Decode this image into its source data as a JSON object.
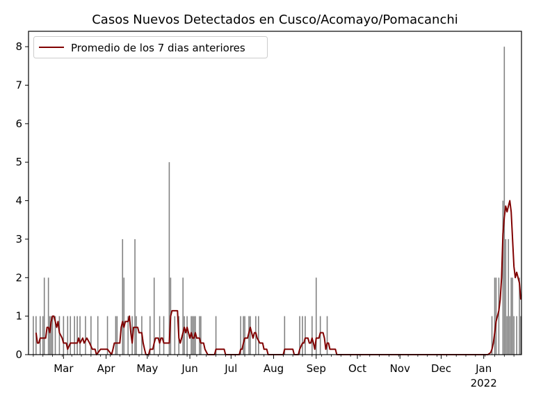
{
  "chart_data": {
    "type": "bar",
    "title": "Casos Nuevos Detectados en Cusco/Acomayo/Pomacanchi",
    "xlabel": "",
    "ylabel": "",
    "x_range": [
      "2021-02-04",
      "2022-01-28"
    ],
    "ylim": [
      0,
      8.4
    ],
    "yticks": [
      0,
      1,
      2,
      3,
      4,
      5,
      6,
      7,
      8
    ],
    "xticks": [
      {
        "date": "2021-03-01",
        "label": "Mar"
      },
      {
        "date": "2021-04-01",
        "label": "Apr"
      },
      {
        "date": "2021-05-01",
        "label": "May"
      },
      {
        "date": "2021-06-01",
        "label": "Jun"
      },
      {
        "date": "2021-07-01",
        "label": "Jul"
      },
      {
        "date": "2021-08-01",
        "label": "Aug"
      },
      {
        "date": "2021-09-01",
        "label": "Sep"
      },
      {
        "date": "2021-10-01",
        "label": "Oct"
      },
      {
        "date": "2021-11-01",
        "label": "Nov"
      },
      {
        "date": "2021-12-01",
        "label": "Dec"
      },
      {
        "date": "2022-01-01",
        "label": "Jan\n2022"
      }
    ],
    "series": [
      {
        "type": "bar",
        "color": "#808080",
        "data": [
          [
            "2021-02-07",
            1
          ],
          [
            "2021-02-09",
            1
          ],
          [
            "2021-02-12",
            1
          ],
          [
            "2021-02-14",
            1
          ],
          [
            "2021-02-15",
            2
          ],
          [
            "2021-02-18",
            2
          ],
          [
            "2021-02-19",
            1
          ],
          [
            "2021-02-20",
            1
          ],
          [
            "2021-02-21",
            1
          ],
          [
            "2021-02-23",
            1
          ],
          [
            "2021-02-26",
            1
          ],
          [
            "2021-03-01",
            1
          ],
          [
            "2021-03-04",
            1
          ],
          [
            "2021-03-06",
            1
          ],
          [
            "2021-03-09",
            1
          ],
          [
            "2021-03-11",
            1
          ],
          [
            "2021-03-13",
            1
          ],
          [
            "2021-03-17",
            1
          ],
          [
            "2021-03-21",
            1
          ],
          [
            "2021-03-26",
            1
          ],
          [
            "2021-04-02",
            1
          ],
          [
            "2021-04-08",
            1
          ],
          [
            "2021-04-09",
            1
          ],
          [
            "2021-04-13",
            3
          ],
          [
            "2021-04-14",
            2
          ],
          [
            "2021-04-17",
            1
          ],
          [
            "2021-04-20",
            1
          ],
          [
            "2021-04-22",
            3
          ],
          [
            "2021-04-23",
            1
          ],
          [
            "2021-04-27",
            1
          ],
          [
            "2021-05-03",
            1
          ],
          [
            "2021-05-06",
            2
          ],
          [
            "2021-05-10",
            1
          ],
          [
            "2021-05-13",
            1
          ],
          [
            "2021-05-17",
            5
          ],
          [
            "2021-05-18",
            2
          ],
          [
            "2021-05-21",
            1
          ],
          [
            "2021-05-24",
            1
          ],
          [
            "2021-05-27",
            2
          ],
          [
            "2021-05-28",
            1
          ],
          [
            "2021-05-30",
            1
          ],
          [
            "2021-06-02",
            1
          ],
          [
            "2021-06-03",
            1
          ],
          [
            "2021-06-04",
            1
          ],
          [
            "2021-06-05",
            1
          ],
          [
            "2021-06-08",
            1
          ],
          [
            "2021-06-09",
            1
          ],
          [
            "2021-06-20",
            1
          ],
          [
            "2021-07-08",
            1
          ],
          [
            "2021-07-10",
            1
          ],
          [
            "2021-07-11",
            1
          ],
          [
            "2021-07-14",
            1
          ],
          [
            "2021-07-15",
            1
          ],
          [
            "2021-07-19",
            1
          ],
          [
            "2021-07-21",
            1
          ],
          [
            "2021-08-09",
            1
          ],
          [
            "2021-08-20",
            1
          ],
          [
            "2021-08-22",
            1
          ],
          [
            "2021-08-24",
            1
          ],
          [
            "2021-08-29",
            1
          ],
          [
            "2021-09-01",
            2
          ],
          [
            "2021-09-04",
            1
          ],
          [
            "2021-09-09",
            1
          ],
          [
            "2022-01-07",
            1
          ],
          [
            "2022-01-09",
            2
          ],
          [
            "2022-01-10",
            2
          ],
          [
            "2022-01-12",
            2
          ],
          [
            "2022-01-15",
            4
          ],
          [
            "2022-01-16",
            8
          ],
          [
            "2022-01-17",
            3
          ],
          [
            "2022-01-18",
            1
          ],
          [
            "2022-01-19",
            3
          ],
          [
            "2022-01-20",
            1
          ],
          [
            "2022-01-21",
            2
          ],
          [
            "2022-01-22",
            2
          ],
          [
            "2022-01-23",
            1
          ],
          [
            "2022-01-25",
            1
          ],
          [
            "2022-01-27",
            2
          ],
          [
            "2022-01-28",
            1
          ]
        ]
      },
      {
        "type": "line",
        "name": "Promedio de los 7 dias anteriores",
        "color": "#800000",
        "data": [
          [
            "2021-02-09",
            0.57
          ],
          [
            "2021-02-10",
            0.3
          ],
          [
            "2021-02-11",
            0.3
          ],
          [
            "2021-02-12",
            0.43
          ],
          [
            "2021-02-16",
            0.43
          ],
          [
            "2021-02-17",
            0.71
          ],
          [
            "2021-02-18",
            0.71
          ],
          [
            "2021-02-19",
            0.57
          ],
          [
            "2021-02-20",
            0.86
          ],
          [
            "2021-02-21",
            1.0
          ],
          [
            "2021-02-22",
            1.0
          ],
          [
            "2021-02-23",
            0.86
          ],
          [
            "2021-02-24",
            0.71
          ],
          [
            "2021-02-25",
            0.86
          ],
          [
            "2021-02-26",
            0.57
          ],
          [
            "2021-02-28",
            0.43
          ],
          [
            "2021-03-01",
            0.3
          ],
          [
            "2021-03-03",
            0.3
          ],
          [
            "2021-03-04",
            0.14
          ],
          [
            "2021-03-06",
            0.3
          ],
          [
            "2021-03-11",
            0.3
          ],
          [
            "2021-03-12",
            0.43
          ],
          [
            "2021-03-13",
            0.3
          ],
          [
            "2021-03-15",
            0.43
          ],
          [
            "2021-03-16",
            0.3
          ],
          [
            "2021-03-18",
            0.43
          ],
          [
            "2021-03-20",
            0.3
          ],
          [
            "2021-03-22",
            0.14
          ],
          [
            "2021-03-24",
            0.14
          ],
          [
            "2021-03-25",
            0
          ],
          [
            "2021-03-28",
            0.14
          ],
          [
            "2021-03-31",
            0.14
          ],
          [
            "2021-04-02",
            0.14
          ],
          [
            "2021-04-05",
            0
          ],
          [
            "2021-04-06",
            0.14
          ],
          [
            "2021-04-07",
            0.3
          ],
          [
            "2021-04-11",
            0.3
          ],
          [
            "2021-04-12",
            0.71
          ],
          [
            "2021-04-13",
            0.86
          ],
          [
            "2021-04-14",
            0.71
          ],
          [
            "2021-04-15",
            0.86
          ],
          [
            "2021-04-17",
            0.86
          ],
          [
            "2021-04-18",
            1.0
          ],
          [
            "2021-04-19",
            0.57
          ],
          [
            "2021-04-20",
            0.3
          ],
          [
            "2021-04-21",
            0.71
          ],
          [
            "2021-04-24",
            0.71
          ],
          [
            "2021-04-25",
            0.57
          ],
          [
            "2021-04-27",
            0.57
          ],
          [
            "2021-04-28",
            0.3
          ],
          [
            "2021-04-29",
            0.14
          ],
          [
            "2021-04-30",
            0
          ],
          [
            "2021-05-02",
            0
          ],
          [
            "2021-05-03",
            0.14
          ],
          [
            "2021-05-05",
            0.14
          ],
          [
            "2021-05-06",
            0.3
          ],
          [
            "2021-05-07",
            0.43
          ],
          [
            "2021-05-09",
            0.43
          ],
          [
            "2021-05-10",
            0.3
          ],
          [
            "2021-05-11",
            0.43
          ],
          [
            "2021-05-12",
            0.43
          ],
          [
            "2021-05-13",
            0.3
          ],
          [
            "2021-05-17",
            0.3
          ],
          [
            "2021-05-18",
            1.0
          ],
          [
            "2021-05-19",
            1.14
          ],
          [
            "2021-05-23",
            1.14
          ],
          [
            "2021-05-24",
            0.43
          ],
          [
            "2021-05-25",
            0.3
          ],
          [
            "2021-05-26",
            0.43
          ],
          [
            "2021-05-27",
            0.57
          ],
          [
            "2021-05-28",
            0.71
          ],
          [
            "2021-05-29",
            0.57
          ],
          [
            "2021-05-30",
            0.71
          ],
          [
            "2021-05-31",
            0.57
          ],
          [
            "2021-06-01",
            0.43
          ],
          [
            "2021-06-02",
            0.57
          ],
          [
            "2021-06-03",
            0.43
          ],
          [
            "2021-06-04",
            0.43
          ],
          [
            "2021-06-05",
            0.57
          ],
          [
            "2021-06-06",
            0.43
          ],
          [
            "2021-06-08",
            0.43
          ],
          [
            "2021-06-09",
            0.3
          ],
          [
            "2021-06-11",
            0.3
          ],
          [
            "2021-06-12",
            0.14
          ],
          [
            "2021-06-14",
            0
          ],
          [
            "2021-06-19",
            0
          ],
          [
            "2021-06-20",
            0.14
          ],
          [
            "2021-06-26",
            0.14
          ],
          [
            "2021-06-27",
            0
          ],
          [
            "2021-07-07",
            0
          ],
          [
            "2021-07-08",
            0.14
          ],
          [
            "2021-07-09",
            0.14
          ],
          [
            "2021-07-10",
            0.3
          ],
          [
            "2021-07-11",
            0.43
          ],
          [
            "2021-07-13",
            0.43
          ],
          [
            "2021-07-14",
            0.57
          ],
          [
            "2021-07-15",
            0.71
          ],
          [
            "2021-07-16",
            0.57
          ],
          [
            "2021-07-17",
            0.43
          ],
          [
            "2021-07-18",
            0.57
          ],
          [
            "2021-07-19",
            0.57
          ],
          [
            "2021-07-20",
            0.43
          ],
          [
            "2021-07-22",
            0.3
          ],
          [
            "2021-07-24",
            0.3
          ],
          [
            "2021-07-25",
            0.14
          ],
          [
            "2021-07-27",
            0.14
          ],
          [
            "2021-07-28",
            0
          ],
          [
            "2021-08-08",
            0
          ],
          [
            "2021-08-09",
            0.14
          ],
          [
            "2021-08-15",
            0.14
          ],
          [
            "2021-08-16",
            0
          ],
          [
            "2021-08-19",
            0
          ],
          [
            "2021-08-20",
            0.14
          ],
          [
            "2021-08-22",
            0.3
          ],
          [
            "2021-08-23",
            0.3
          ],
          [
            "2021-08-24",
            0.43
          ],
          [
            "2021-08-26",
            0.43
          ],
          [
            "2021-08-27",
            0.3
          ],
          [
            "2021-08-28",
            0.3
          ],
          [
            "2021-08-29",
            0.43
          ],
          [
            "2021-08-30",
            0.3
          ],
          [
            "2021-08-31",
            0.14
          ],
          [
            "2021-09-01",
            0.43
          ],
          [
            "2021-09-03",
            0.43
          ],
          [
            "2021-09-04",
            0.57
          ],
          [
            "2021-09-06",
            0.57
          ],
          [
            "2021-09-07",
            0.43
          ],
          [
            "2021-09-08",
            0.14
          ],
          [
            "2021-09-09",
            0.3
          ],
          [
            "2021-09-10",
            0.3
          ],
          [
            "2021-09-11",
            0.14
          ],
          [
            "2021-09-15",
            0.14
          ],
          [
            "2021-09-16",
            0
          ],
          [
            "2022-01-04",
            0
          ],
          [
            "2022-01-06",
            0.05
          ],
          [
            "2022-01-07",
            0.14
          ],
          [
            "2022-01-08",
            0.3
          ],
          [
            "2022-01-09",
            0.57
          ],
          [
            "2022-01-10",
            0.86
          ],
          [
            "2022-01-11",
            1.0
          ],
          [
            "2022-01-12",
            1.14
          ],
          [
            "2022-01-13",
            1.43
          ],
          [
            "2022-01-14",
            2.0
          ],
          [
            "2022-01-15",
            3.14
          ],
          [
            "2022-01-16",
            3.57
          ],
          [
            "2022-01-17",
            3.86
          ],
          [
            "2022-01-18",
            3.71
          ],
          [
            "2022-01-19",
            3.86
          ],
          [
            "2022-01-20",
            4.0
          ],
          [
            "2022-01-21",
            3.71
          ],
          [
            "2022-01-22",
            3.0
          ],
          [
            "2022-01-23",
            2.29
          ],
          [
            "2022-01-24",
            2.0
          ],
          [
            "2022-01-25",
            2.14
          ],
          [
            "2022-01-26",
            2.0
          ],
          [
            "2022-01-27",
            1.86
          ],
          [
            "2022-01-28",
            1.43
          ]
        ]
      }
    ],
    "legend": {
      "entries": [
        "Promedio de los 7 dias anteriores"
      ],
      "position": "upper-left"
    },
    "grid": false
  }
}
